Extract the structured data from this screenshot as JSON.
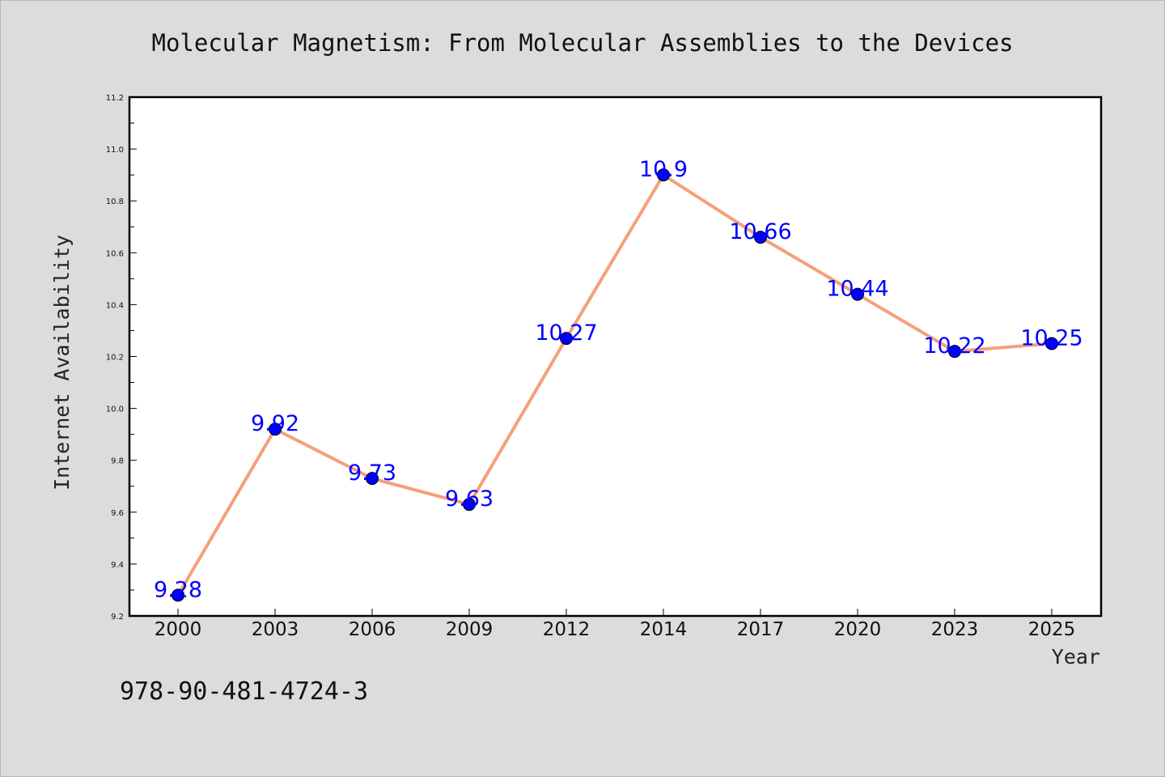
{
  "chart_data": {
    "type": "line",
    "title": "Molecular Magnetism: From Molecular Assemblies to the Devices",
    "xlabel": "Year",
    "ylabel": "Internet Availability",
    "categories": [
      "2000",
      "2003",
      "2006",
      "2009",
      "2012",
      "2014",
      "2017",
      "2020",
      "2023",
      "2025"
    ],
    "values": [
      9.28,
      9.92,
      9.73,
      9.63,
      10.27,
      10.9,
      10.66,
      10.44,
      10.22,
      10.25
    ],
    "data_labels": [
      "9.28",
      "9.92",
      "9.73",
      "9.63",
      "10.27",
      "10.9",
      "10.66",
      "10.44",
      "10.22",
      "10.25"
    ],
    "ylim": [
      9.2,
      11.2
    ],
    "yticks": [
      "9.2",
      "9.4",
      "9.6",
      "9.8",
      "10.0",
      "10.2",
      "10.4",
      "10.6",
      "10.8",
      "11.0",
      "11.2"
    ],
    "grid": false,
    "line_color": "#f4a07a",
    "marker_color": "#0000ff",
    "label_color": "#0000ff"
  },
  "annotation": "978-90-481-4724-3"
}
